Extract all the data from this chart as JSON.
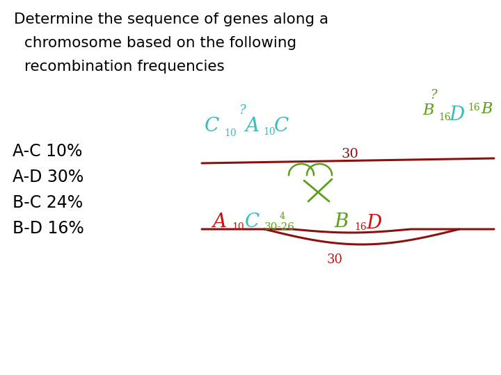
{
  "title_line1": "Determine the sequence of genes along a",
  "title_line2": "  chromosome based on the following",
  "title_line3": "  recombination frequencies",
  "left_labels": [
    "A-C 10%",
    "A-D 30%",
    "B-C 24%",
    "B-D 16%"
  ],
  "bg_color": "#ffffff",
  "text_color": "#000000",
  "title_fontsize": 15.5,
  "label_fontsize": 17,
  "dark_red": "#8B1010",
  "cyan": "#3ABCBC",
  "green": "#5A9E1A",
  "red2": "#CC1010"
}
